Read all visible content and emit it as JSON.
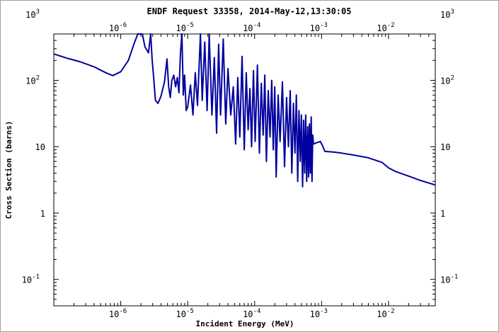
{
  "window": {
    "title": "ENDF Request 33358, 2014-May-12,13:30:05"
  },
  "chart_data": {
    "type": "line",
    "title": "ENDF Request 33358, 2014-May-12,13:30:05",
    "xlabel": "Incident Energy (MeV)",
    "ylabel": "Cross Section (barns)",
    "x_scale": "log",
    "y_scale": "log",
    "xlim": [
      1e-07,
      0.05
    ],
    "ylim": [
      0.04,
      500
    ],
    "grid": false,
    "line_color": "#0000a0",
    "x_ticks": [
      {
        "base": "10",
        "exp": "-6",
        "value": 1e-06
      },
      {
        "base": "10",
        "exp": "-5",
        "value": 1e-05
      },
      {
        "base": "10",
        "exp": "-4",
        "value": 0.0001
      },
      {
        "base": "10",
        "exp": "-3",
        "value": 0.001
      },
      {
        "base": "10",
        "exp": "-2",
        "value": 0.01
      }
    ],
    "y_ticks": [
      {
        "label": "10",
        "exp": "-1",
        "value": 0.1
      },
      {
        "label": "1",
        "exp": "",
        "value": 1
      },
      {
        "label": "10",
        "exp": "",
        "value": 10
      },
      {
        "label": "10",
        "exp": "2",
        "value": 100
      },
      {
        "label": "10",
        "exp": "3",
        "value": 1000
      }
    ],
    "series": [
      {
        "values_xy": [
          [
            1e-07,
            250
          ],
          [
            1.6e-07,
            215
          ],
          [
            2.5e-07,
            190
          ],
          [
            4e-07,
            160
          ],
          [
            6e-07,
            130
          ],
          [
            7.6e-07,
            118
          ],
          [
            1e-06,
            135
          ],
          [
            1.3e-06,
            200
          ],
          [
            1.6e-06,
            370
          ],
          [
            1.8e-06,
            600
          ],
          [
            1.95e-06,
            880
          ],
          [
            2.1e-06,
            740
          ],
          [
            2.3e-06,
            320
          ],
          [
            2.6e-06,
            260
          ],
          [
            2.8e-06,
            680
          ],
          [
            2.95e-06,
            200
          ],
          [
            3.1e-06,
            110
          ],
          [
            3.3e-06,
            50
          ],
          [
            3.6e-06,
            45
          ],
          [
            4e-06,
            58
          ],
          [
            4.5e-06,
            95
          ],
          [
            4.9e-06,
            210
          ],
          [
            5.2e-06,
            80
          ],
          [
            5.5e-06,
            55
          ],
          [
            5.8e-06,
            100
          ],
          [
            6.2e-06,
            120
          ],
          [
            6.6e-06,
            80
          ],
          [
            7e-06,
            110
          ],
          [
            7.4e-06,
            65
          ],
          [
            7.8e-06,
            260
          ],
          [
            8.2e-06,
            520
          ],
          [
            8.6e-06,
            60
          ],
          [
            9e-06,
            120
          ],
          [
            9.5e-06,
            35
          ],
          [
            1e-05,
            40
          ],
          [
            1.1e-05,
            85
          ],
          [
            1.2e-05,
            30
          ],
          [
            1.3e-05,
            130
          ],
          [
            1.4e-05,
            42
          ],
          [
            1.55e-05,
            750
          ],
          [
            1.65e-05,
            50
          ],
          [
            1.8e-05,
            380
          ],
          [
            1.95e-05,
            35
          ],
          [
            2.1e-05,
            550
          ],
          [
            2.3e-05,
            30
          ],
          [
            2.5e-05,
            220
          ],
          [
            2.7e-05,
            16
          ],
          [
            2.9e-05,
            350
          ],
          [
            3.1e-05,
            30
          ],
          [
            3.4e-05,
            420
          ],
          [
            3.7e-05,
            22
          ],
          [
            4e-05,
            150
          ],
          [
            4.4e-05,
            30
          ],
          [
            4.8e-05,
            80
          ],
          [
            5.2e-05,
            11
          ],
          [
            5.6e-05,
            110
          ],
          [
            6e-05,
            14
          ],
          [
            6.5e-05,
            230
          ],
          [
            7e-05,
            9
          ],
          [
            7.5e-05,
            130
          ],
          [
            8e-05,
            18
          ],
          [
            8.5e-05,
            75
          ],
          [
            9e-05,
            10
          ],
          [
            9.6e-05,
            140
          ],
          [
            0.000102,
            12
          ],
          [
            0.00011,
            170
          ],
          [
            0.000118,
            8
          ],
          [
            0.000126,
            90
          ],
          [
            0.000134,
            15
          ],
          [
            0.000142,
            120
          ],
          [
            0.00015,
            6
          ],
          [
            0.00016,
            70
          ],
          [
            0.00017,
            14
          ],
          [
            0.00018,
            100
          ],
          [
            0.00019,
            9
          ],
          [
            0.0002,
            80
          ],
          [
            0.00021,
            3.5
          ],
          [
            0.000225,
            60
          ],
          [
            0.00024,
            12
          ],
          [
            0.00026,
            95
          ],
          [
            0.00028,
            5
          ],
          [
            0.0003,
            55
          ],
          [
            0.00032,
            10
          ],
          [
            0.00034,
            70
          ],
          [
            0.00036,
            4
          ],
          [
            0.00038,
            45
          ],
          [
            0.0004,
            8
          ],
          [
            0.00042,
            60
          ],
          [
            0.00044,
            3
          ],
          [
            0.00046,
            35
          ],
          [
            0.00048,
            6
          ],
          [
            0.0005,
            30
          ],
          [
            0.00052,
            2.5
          ],
          [
            0.00054,
            25
          ],
          [
            0.00056,
            4
          ],
          [
            0.00058,
            30
          ],
          [
            0.0006,
            3
          ],
          [
            0.00062,
            20
          ],
          [
            0.00064,
            3.5
          ],
          [
            0.00066,
            22
          ],
          [
            0.00068,
            4
          ],
          [
            0.0007,
            28
          ],
          [
            0.00072,
            3
          ],
          [
            0.00074,
            15
          ],
          [
            0.00076,
            11
          ],
          [
            0.00085,
            11.5
          ],
          [
            0.00096,
            12
          ],
          [
            0.00105,
            10
          ],
          [
            0.00112,
            8.5
          ],
          [
            0.0015,
            8.3
          ],
          [
            0.002,
            8.0
          ],
          [
            0.003,
            7.5
          ],
          [
            0.005,
            6.8
          ],
          [
            0.008,
            5.8
          ],
          [
            0.01,
            4.8
          ],
          [
            0.013,
            4.2
          ],
          [
            0.02,
            3.6
          ],
          [
            0.03,
            3.1
          ],
          [
            0.05,
            2.65
          ]
        ]
      }
    ]
  }
}
